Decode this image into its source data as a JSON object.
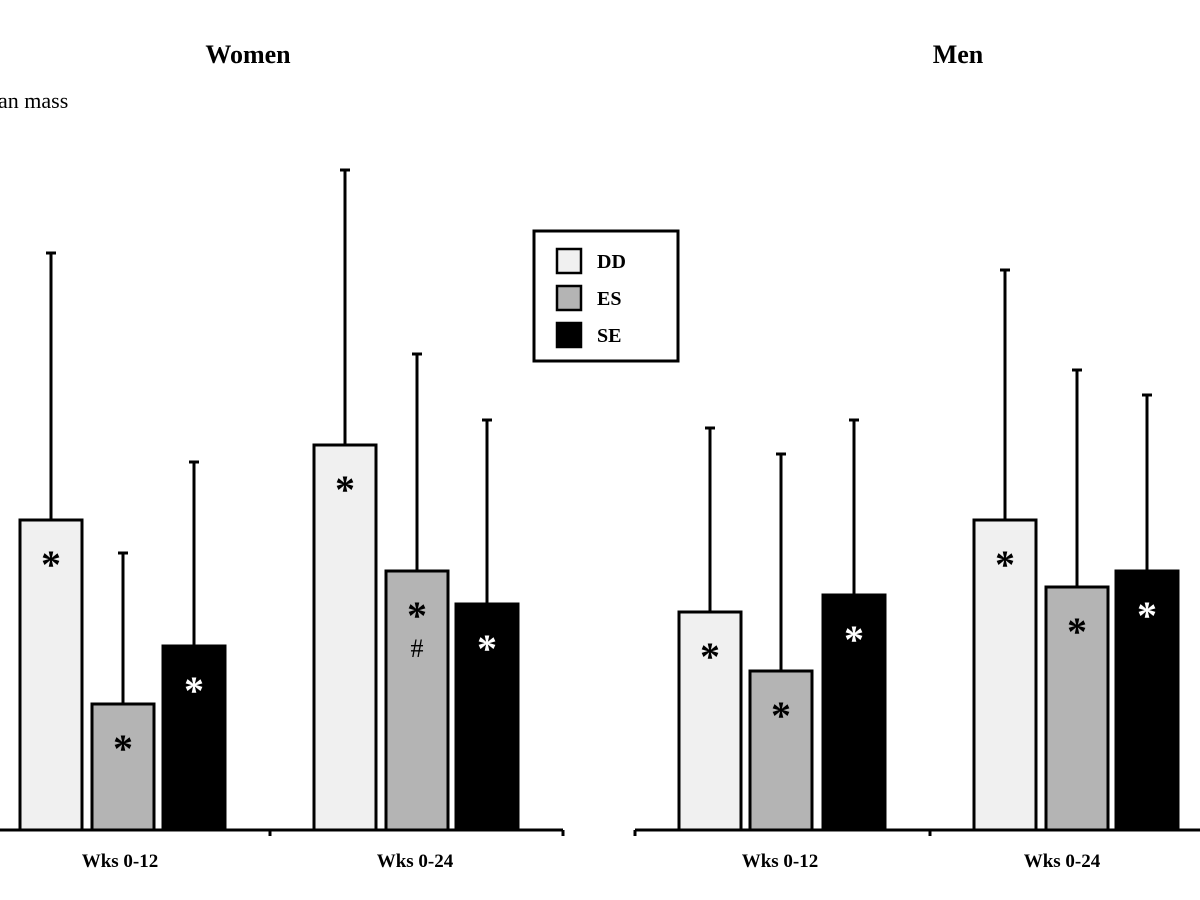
{
  "chart_data": {
    "type": "bar",
    "ylabel": "an mass",
    "units": "relative (no y-axis ticks shown)",
    "ylim": [
      0,
      7
    ],
    "legend": {
      "placement": "top-center",
      "entries": [
        "DD",
        "ES",
        "SE"
      ]
    },
    "colors": {
      "DD": "#f0f0f0",
      "ES": "#b4b4b4",
      "SE": "#000000"
    },
    "panels": [
      {
        "title": "Women",
        "categories": [
          "Wks 0-12",
          "Wks 0-24"
        ],
        "series": [
          {
            "name": "DD",
            "values": [
              3.1,
              3.85
            ],
            "error_upper": [
              5.77,
              6.6
            ],
            "annotations": [
              "*",
              "*"
            ]
          },
          {
            "name": "ES",
            "values": [
              1.26,
              2.59
            ],
            "error_upper": [
              2.77,
              4.76
            ],
            "annotations": [
              "*",
              "*#"
            ]
          },
          {
            "name": "SE",
            "values": [
              1.84,
              2.26
            ],
            "error_upper": [
              3.68,
              4.1
            ],
            "annotations": [
              "*",
              "*"
            ]
          }
        ]
      },
      {
        "title": "Men",
        "categories": [
          "Wks 0-12",
          "Wks 0-24"
        ],
        "series": [
          {
            "name": "DD",
            "values": [
              2.18,
              3.1
            ],
            "error_upper": [
              4.02,
              5.6
            ],
            "annotations": [
              "*",
              "*"
            ]
          },
          {
            "name": "ES",
            "values": [
              1.59,
              2.43
            ],
            "error_upper": [
              3.76,
              4.6
            ],
            "annotations": [
              "*",
              "*"
            ]
          },
          {
            "name": "SE",
            "values": [
              2.35,
              2.59
            ],
            "error_upper": [
              4.1,
              4.35
            ],
            "annotations": [
              "*",
              "*"
            ]
          }
        ]
      }
    ]
  }
}
